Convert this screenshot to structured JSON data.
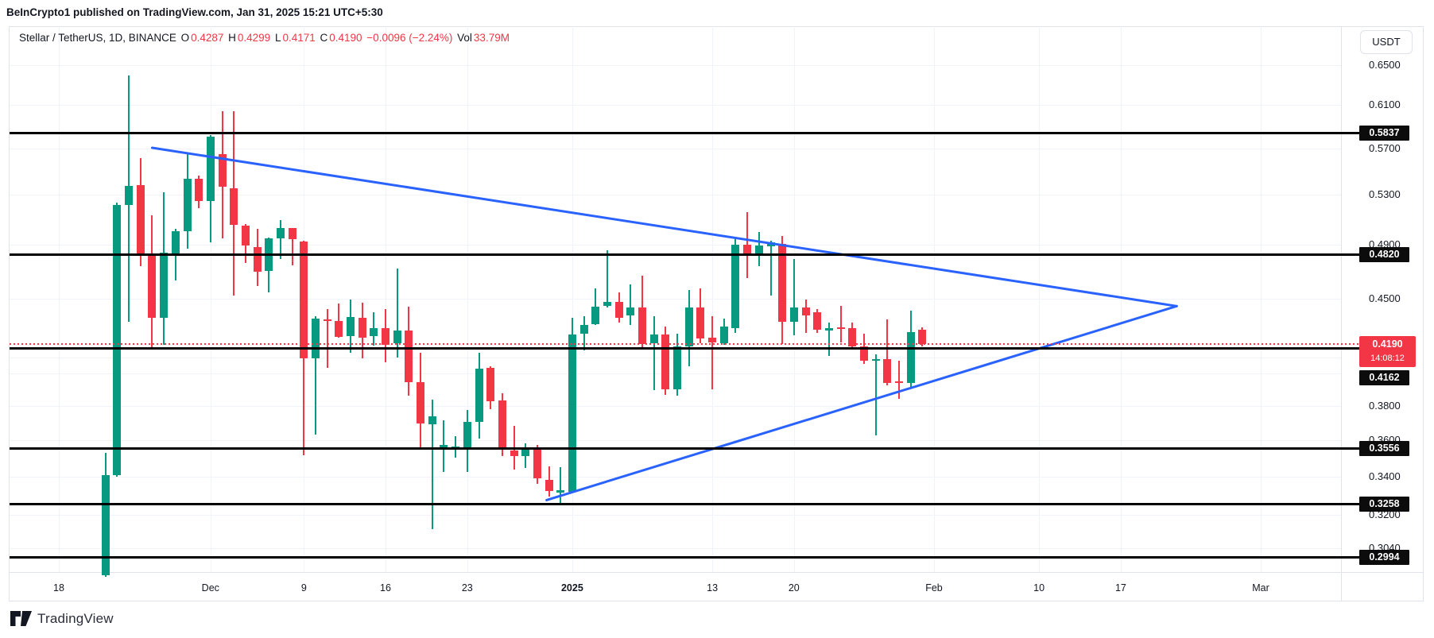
{
  "header": {
    "text": "BeInCrypto1 published on TradingView.com, Jan 31, 2025 15:21 UTC+5:30"
  },
  "legend": {
    "segments": [
      {
        "text": "Stellar / TetherUS, 1D, BINANCE ",
        "color": "#131722"
      },
      {
        "text": "O",
        "color": "#131722"
      },
      {
        "text": "0.4287",
        "color": "#F23645"
      },
      {
        "text": " H",
        "color": "#131722"
      },
      {
        "text": "0.4299",
        "color": "#F23645"
      },
      {
        "text": " L",
        "color": "#131722"
      },
      {
        "text": "0.4171",
        "color": "#F23645"
      },
      {
        "text": " C",
        "color": "#131722"
      },
      {
        "text": "0.4190",
        "color": "#F23645"
      },
      {
        "text": " −0.0096 (−2.24%)",
        "color": "#F23645"
      },
      {
        "text": " Vol",
        "color": "#131722"
      },
      {
        "text": "33.79M",
        "color": "#F23645"
      }
    ]
  },
  "price_axis": {
    "currency": "USDT",
    "labels": [
      "0.6500",
      "0.6100",
      "0.5700",
      "0.5300",
      "0.4900",
      "0.4500",
      "0.3800",
      "0.3600",
      "0.3400",
      "0.3200",
      "0.3040"
    ],
    "level_badges": [
      "0.5837",
      "0.4820",
      "0.4162",
      "0.3556",
      "0.3258",
      "0.2994"
    ],
    "current_price_badge": {
      "price": "0.4190",
      "countdown": "14:08:12"
    }
  },
  "time_axis": {
    "labels": [
      {
        "text": "18",
        "day": 0
      },
      {
        "text": "Dec",
        "day": 13
      },
      {
        "text": "9",
        "day": 21
      },
      {
        "text": "16",
        "day": 28
      },
      {
        "text": "23",
        "day": 35
      },
      {
        "text": "2025",
        "day": 44,
        "bold": true
      },
      {
        "text": "13",
        "day": 56
      },
      {
        "text": "20",
        "day": 63
      },
      {
        "text": "Feb",
        "day": 75
      },
      {
        "text": "10",
        "day": 84
      },
      {
        "text": "17",
        "day": 91
      },
      {
        "text": "Mar",
        "day": 103
      }
    ]
  },
  "footer": {
    "brand": "TradingView"
  },
  "colors": {
    "up": "#089981",
    "down": "#F23645",
    "trendline": "#2962FF",
    "level_line": "#000000",
    "current_price": "#F23645",
    "badge_bg": "#0C0C0C",
    "text": "#131722",
    "grid": "#F0F3FA",
    "border": "#E0E3EB"
  },
  "chart_data": {
    "type": "candlestick",
    "title": "Stellar / TetherUS, 1D, BINANCE",
    "symbol": "Stellar / TetherUS",
    "interval": "1D",
    "exchange": "BINANCE",
    "legend_ohlc": {
      "open": 0.4287,
      "high": 0.4299,
      "low": 0.4171,
      "close": 0.419,
      "change": -0.0096,
      "change_pct": -2.24,
      "volume": "33.79M"
    },
    "price_scale": "logarithmic",
    "ylim": [
      0.2905,
      0.665
    ],
    "horizontal_levels": [
      0.5837,
      0.482,
      0.4162,
      0.3556,
      0.3258,
      0.2994
    ],
    "current_price": 0.419,
    "countdown": "14:08:12",
    "gridline_only_prices": [
      0.41,
      0.4
    ],
    "trendlines": [
      {
        "name": "upper-descending",
        "from": {
          "day": 8.0,
          "price": 0.5704
        },
        "to": {
          "day": 95.8,
          "price": 0.4446
        }
      },
      {
        "name": "lower-ascending",
        "from": {
          "day": 41.8,
          "price": 0.3277
        },
        "to": {
          "day": 95.8,
          "price": 0.4446
        }
      }
    ],
    "first_candle_day_index": 4,
    "candles_format": [
      "date",
      "open",
      "high",
      "low",
      "close"
    ],
    "candles": [
      [
        "Nov 22",
        0.2911,
        0.3528,
        0.2905,
        0.3407
      ],
      [
        "Nov 23",
        0.3407,
        0.523,
        0.34,
        0.5215
      ],
      [
        "Nov 24",
        0.5215,
        0.639,
        0.434,
        0.537
      ],
      [
        "Nov 25",
        0.538,
        0.561,
        0.4735,
        0.482
      ],
      [
        "Nov 26",
        0.482,
        0.513,
        0.4165,
        0.4365
      ],
      [
        "Nov 27",
        0.4365,
        0.532,
        0.4185,
        0.4835
      ],
      [
        "Nov 28",
        0.483,
        0.502,
        0.463,
        0.5005
      ],
      [
        "Nov 29",
        0.5005,
        0.565,
        0.4865,
        0.543
      ],
      [
        "Nov 30",
        0.543,
        0.546,
        0.5185,
        0.5245
      ],
      [
        "Dec 1",
        0.5245,
        0.582,
        0.4915,
        0.5805
      ],
      [
        "Dec 2",
        0.5645,
        0.604,
        0.4945,
        0.5365
      ],
      [
        "Dec 3",
        0.535,
        0.604,
        0.452,
        0.5055
      ],
      [
        "Dec 4",
        0.5045,
        0.506,
        0.476,
        0.489
      ],
      [
        "Dec 5",
        0.488,
        0.502,
        0.459,
        0.4695
      ],
      [
        "Dec 6",
        0.47,
        0.495,
        0.4545,
        0.4945
      ],
      [
        "Dec 7",
        0.4945,
        0.509,
        0.479,
        0.5025
      ],
      [
        "Dec 8",
        0.5025,
        0.503,
        0.474,
        0.494
      ],
      [
        "Dec 9",
        0.4925,
        0.493,
        0.3515,
        0.4095
      ],
      [
        "Dec 10",
        0.4095,
        0.4375,
        0.363,
        0.436
      ],
      [
        "Dec 11",
        0.4355,
        0.4425,
        0.4035,
        0.4345
      ],
      [
        "Dec 12",
        0.4345,
        0.4465,
        0.423,
        0.4235
      ],
      [
        "Dec 13",
        0.424,
        0.4495,
        0.413,
        0.437
      ],
      [
        "Dec 14",
        0.4365,
        0.447,
        0.4095,
        0.423
      ],
      [
        "Dec 15",
        0.424,
        0.4405,
        0.418,
        0.4295
      ],
      [
        "Dec 16",
        0.4295,
        0.4425,
        0.407,
        0.4185
      ],
      [
        "Dec 17",
        0.4195,
        0.472,
        0.41,
        0.428
      ],
      [
        "Dec 18",
        0.428,
        0.4445,
        0.386,
        0.3945
      ],
      [
        "Dec 19",
        0.3945,
        0.413,
        0.3556,
        0.3695
      ],
      [
        "Dec 20",
        0.369,
        0.384,
        0.313,
        0.374
      ],
      [
        "Dec 21",
        0.356,
        0.3715,
        0.3425,
        0.3575
      ],
      [
        "Dec 22",
        0.3555,
        0.3625,
        0.3505,
        0.3565
      ],
      [
        "Dec 23",
        0.3556,
        0.3775,
        0.3425,
        0.3705
      ],
      [
        "Dec 24",
        0.3705,
        0.413,
        0.361,
        0.403
      ],
      [
        "Dec 25",
        0.4035,
        0.4045,
        0.378,
        0.383
      ],
      [
        "Dec 26",
        0.3835,
        0.3875,
        0.351,
        0.3555
      ],
      [
        "Dec 27",
        0.3545,
        0.3685,
        0.344,
        0.351
      ],
      [
        "Dec 28",
        0.351,
        0.3585,
        0.3445,
        0.356
      ],
      [
        "Dec 29",
        0.3556,
        0.3575,
        0.336,
        0.339
      ],
      [
        "Dec 30",
        0.3385,
        0.3455,
        0.3295,
        0.3325
      ],
      [
        "Dec 31",
        0.3315,
        0.345,
        0.3255,
        0.333
      ],
      [
        "Jan 1",
        0.332,
        0.4365,
        0.3315,
        0.4255
      ],
      [
        "Jan 2",
        0.4255,
        0.4375,
        0.4145,
        0.4315
      ],
      [
        "Jan 3",
        0.432,
        0.4575,
        0.4315,
        0.444
      ],
      [
        "Jan 4",
        0.445,
        0.4855,
        0.4435,
        0.4475
      ],
      [
        "Jan 5",
        0.4475,
        0.4545,
        0.433,
        0.4365
      ],
      [
        "Jan 6",
        0.438,
        0.46,
        0.4315,
        0.4435
      ],
      [
        "Jan 7",
        0.4435,
        0.4665,
        0.4165,
        0.419
      ],
      [
        "Jan 8",
        0.4195,
        0.4375,
        0.3895,
        0.4255
      ],
      [
        "Jan 9",
        0.425,
        0.4305,
        0.3865,
        0.39
      ],
      [
        "Jan 10",
        0.39,
        0.426,
        0.386,
        0.4175
      ],
      [
        "Jan 11",
        0.4175,
        0.456,
        0.4045,
        0.4435
      ],
      [
        "Jan 12",
        0.4435,
        0.4575,
        0.4197,
        0.4225
      ],
      [
        "Jan 13",
        0.423,
        0.4375,
        0.39,
        0.42
      ],
      [
        "Jan 14",
        0.4195,
        0.436,
        0.4185,
        0.4305
      ],
      [
        "Jan 15",
        0.4295,
        0.4955,
        0.4262,
        0.4895
      ],
      [
        "Jan 16",
        0.49,
        0.5155,
        0.4645,
        0.482
      ],
      [
        "Jan 17",
        0.481,
        0.4995,
        0.4735,
        0.489
      ],
      [
        "Jan 18",
        0.4885,
        0.493,
        0.452,
        0.4915
      ],
      [
        "Jan 19",
        0.4905,
        0.4965,
        0.419,
        0.4335
      ],
      [
        "Jan 20",
        0.4335,
        0.479,
        0.4245,
        0.4435
      ],
      [
        "Jan 21",
        0.4437,
        0.4495,
        0.4265,
        0.438
      ],
      [
        "Jan 22",
        0.4405,
        0.4425,
        0.426,
        0.4285
      ],
      [
        "Jan 23",
        0.4278,
        0.4335,
        0.411,
        0.4295
      ],
      [
        "Jan 24",
        0.4298,
        0.4447,
        0.4197,
        0.4288
      ],
      [
        "Jan 25",
        0.4295,
        0.4335,
        0.4162,
        0.4175
      ],
      [
        "Jan 26",
        0.4173,
        0.4257,
        0.4062,
        0.408
      ],
      [
        "Jan 27",
        0.408,
        0.412,
        0.363,
        0.409
      ],
      [
        "Jan 28",
        0.409,
        0.4355,
        0.3925,
        0.394
      ],
      [
        "Jan 29",
        0.3948,
        0.408,
        0.3845,
        0.3938
      ],
      [
        "Jan 30",
        0.394,
        0.4415,
        0.3917,
        0.427
      ],
      [
        "Jan 31",
        0.4287,
        0.4299,
        0.4171,
        0.419
      ]
    ]
  }
}
